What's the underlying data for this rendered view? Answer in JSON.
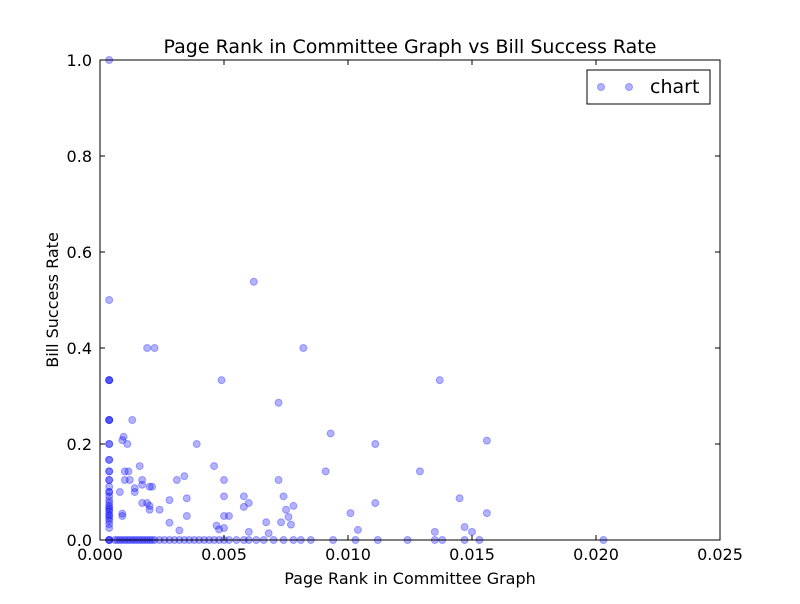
{
  "chart_data": {
    "type": "scatter",
    "title": "Page Rank in Committee Graph vs Bill Success Rate",
    "xlabel": "Page Rank in Committee Graph",
    "ylabel": "Bill Success Rate",
    "xlim": [
      0.0,
      0.025
    ],
    "ylim": [
      0.0,
      1.0
    ],
    "x_ticks": [
      "0.000",
      "0.005",
      "0.010",
      "0.015",
      "0.020",
      "0.025"
    ],
    "y_ticks": [
      "0.0",
      "0.2",
      "0.4",
      "0.6",
      "0.8",
      "1.0"
    ],
    "grid": false,
    "legend_position": "top-right",
    "marker_color": "#0000ff",
    "marker_alpha": 0.3,
    "series": [
      {
        "name": "chart",
        "points": [
          [
            0.00037,
            1.0
          ],
          [
            0.00037,
            0.5
          ],
          [
            0.00037,
            0.333
          ],
          [
            0.00037,
            0.333
          ],
          [
            0.00037,
            0.333
          ],
          [
            0.00037,
            0.25
          ],
          [
            0.00037,
            0.25
          ],
          [
            0.00037,
            0.25
          ],
          [
            0.00037,
            0.2
          ],
          [
            0.00037,
            0.2
          ],
          [
            0.00037,
            0.167
          ],
          [
            0.00037,
            0.167
          ],
          [
            0.00037,
            0.143
          ],
          [
            0.00037,
            0.143
          ],
          [
            0.00037,
            0.125
          ],
          [
            0.00037,
            0.125
          ],
          [
            0.00037,
            0.111
          ],
          [
            0.00037,
            0.1
          ],
          [
            0.00037,
            0.1
          ],
          [
            0.00037,
            0.091
          ],
          [
            0.00037,
            0.083
          ],
          [
            0.00037,
            0.077
          ],
          [
            0.00037,
            0.071
          ],
          [
            0.00037,
            0.067
          ],
          [
            0.00037,
            0.063
          ],
          [
            0.00037,
            0.059
          ],
          [
            0.00037,
            0.053
          ],
          [
            0.00037,
            0.05
          ],
          [
            0.00037,
            0.045
          ],
          [
            0.00037,
            0.04
          ],
          [
            0.00037,
            0.033
          ],
          [
            0.00037,
            0.025
          ],
          [
            0.00037,
            0.0
          ],
          [
            0.00037,
            0.0
          ],
          [
            0.00037,
            0.0
          ],
          [
            0.0006,
            0.0
          ],
          [
            0.0007,
            0.0
          ],
          [
            0.0008,
            0.0
          ],
          [
            0.0009,
            0.0
          ],
          [
            0.001,
            0.0
          ],
          [
            0.0011,
            0.0
          ],
          [
            0.0012,
            0.0
          ],
          [
            0.0013,
            0.0
          ],
          [
            0.0014,
            0.0
          ],
          [
            0.0015,
            0.0
          ],
          [
            0.0016,
            0.0
          ],
          [
            0.0017,
            0.0
          ],
          [
            0.0018,
            0.0
          ],
          [
            0.0019,
            0.0
          ],
          [
            0.002,
            0.0
          ],
          [
            0.0021,
            0.0
          ],
          [
            0.0022,
            0.0
          ],
          [
            0.0024,
            0.0
          ],
          [
            0.0026,
            0.0
          ],
          [
            0.0028,
            0.0
          ],
          [
            0.003,
            0.0
          ],
          [
            0.0032,
            0.0
          ],
          [
            0.0034,
            0.0
          ],
          [
            0.0036,
            0.0
          ],
          [
            0.0038,
            0.0
          ],
          [
            0.004,
            0.0
          ],
          [
            0.0042,
            0.0
          ],
          [
            0.0044,
            0.0
          ],
          [
            0.0046,
            0.0
          ],
          [
            0.0048,
            0.0
          ],
          [
            0.005,
            0.0
          ],
          [
            0.0052,
            0.0
          ],
          [
            0.0055,
            0.0
          ],
          [
            0.0058,
            0.0
          ],
          [
            0.006,
            0.0
          ],
          [
            0.0063,
            0.0
          ],
          [
            0.0066,
            0.0
          ],
          [
            0.007,
            0.0
          ],
          [
            0.0074,
            0.0
          ],
          [
            0.0078,
            0.0
          ],
          [
            0.0081,
            0.0
          ],
          [
            0.0085,
            0.0
          ],
          [
            0.0094,
            0.0
          ],
          [
            0.0103,
            0.0
          ],
          [
            0.0112,
            0.0
          ],
          [
            0.0124,
            0.0
          ],
          [
            0.0135,
            0.0
          ],
          [
            0.0138,
            0.0
          ],
          [
            0.0147,
            0.0
          ],
          [
            0.0153,
            0.0
          ],
          [
            0.0203,
            0.0
          ],
          [
            0.0008,
            0.1
          ],
          [
            0.0009,
            0.208
          ],
          [
            0.00095,
            0.215
          ],
          [
            0.0009,
            0.05
          ],
          [
            0.0009,
            0.055
          ],
          [
            0.001,
            0.143
          ],
          [
            0.001,
            0.125
          ],
          [
            0.0011,
            0.2
          ],
          [
            0.00115,
            0.143
          ],
          [
            0.0012,
            0.125
          ],
          [
            0.0013,
            0.25
          ],
          [
            0.0014,
            0.108
          ],
          [
            0.0014,
            0.1
          ],
          [
            0.0016,
            0.154
          ],
          [
            0.0017,
            0.125
          ],
          [
            0.0017,
            0.115
          ],
          [
            0.0017,
            0.077
          ],
          [
            0.0019,
            0.4
          ],
          [
            0.0019,
            0.077
          ],
          [
            0.002,
            0.111
          ],
          [
            0.002,
            0.071
          ],
          [
            0.002,
            0.063
          ],
          [
            0.0021,
            0.111
          ],
          [
            0.0022,
            0.4
          ],
          [
            0.0024,
            0.063
          ],
          [
            0.0028,
            0.083
          ],
          [
            0.0028,
            0.036
          ],
          [
            0.0031,
            0.125
          ],
          [
            0.0032,
            0.02
          ],
          [
            0.0034,
            0.133
          ],
          [
            0.0035,
            0.087
          ],
          [
            0.0035,
            0.05
          ],
          [
            0.0039,
            0.2
          ],
          [
            0.0046,
            0.154
          ],
          [
            0.0047,
            0.03
          ],
          [
            0.0048,
            0.022
          ],
          [
            0.0049,
            0.333
          ],
          [
            0.005,
            0.125
          ],
          [
            0.005,
            0.091
          ],
          [
            0.005,
            0.05
          ],
          [
            0.005,
            0.025
          ],
          [
            0.0052,
            0.05
          ],
          [
            0.0058,
            0.091
          ],
          [
            0.0058,
            0.069
          ],
          [
            0.006,
            0.077
          ],
          [
            0.006,
            0.017
          ],
          [
            0.0062,
            0.538
          ],
          [
            0.0067,
            0.037
          ],
          [
            0.0068,
            0.014
          ],
          [
            0.0072,
            0.286
          ],
          [
            0.0072,
            0.125
          ],
          [
            0.0073,
            0.037
          ],
          [
            0.0074,
            0.091
          ],
          [
            0.0075,
            0.063
          ],
          [
            0.0076,
            0.048
          ],
          [
            0.0077,
            0.032
          ],
          [
            0.0078,
            0.071
          ],
          [
            0.0082,
            0.4
          ],
          [
            0.0091,
            0.143
          ],
          [
            0.0093,
            0.222
          ],
          [
            0.0101,
            0.056
          ],
          [
            0.0104,
            0.021
          ],
          [
            0.0111,
            0.2
          ],
          [
            0.0111,
            0.077
          ],
          [
            0.0129,
            0.143
          ],
          [
            0.0135,
            0.017
          ],
          [
            0.0137,
            0.333
          ],
          [
            0.0145,
            0.087
          ],
          [
            0.0147,
            0.027
          ],
          [
            0.015,
            0.017
          ],
          [
            0.0156,
            0.207
          ],
          [
            0.0156,
            0.056
          ]
        ]
      }
    ]
  }
}
